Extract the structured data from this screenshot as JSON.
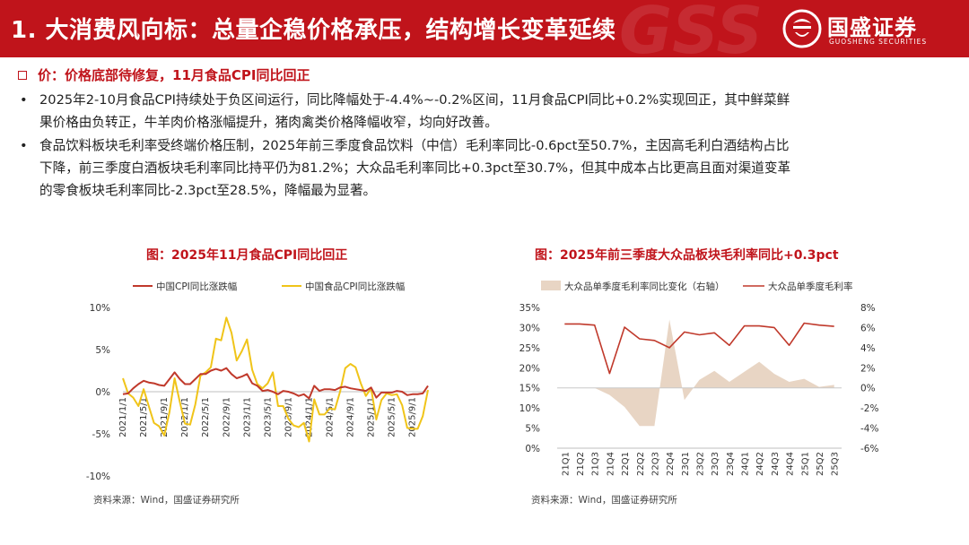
{
  "header": {
    "title": "1. 大消费风向标：总量企稳价格承压，结构增长变革延续",
    "deco_text": "GSS",
    "logo_cn": "国盛证券",
    "logo_en": "GUOSHENG SECURITIES",
    "color": "#c0141b"
  },
  "bullet_head": "价：价格底部待修复，11月食品CPI同比回正",
  "paragraphs": [
    {
      "lines": [
        "2025年2-10月食品CPI持续处于负区间运行，同比降幅处于-4.4%~-0.2%区间，11月食品CPI同比+0.2%实现回正，其中鲜菜鲜",
        "果价格由负转正，牛羊肉价格涨幅提升，猪肉禽类价格降幅收窄，均向好改善。"
      ]
    },
    {
      "lines": [
        "食品饮料板块毛利率受终端价格压制，2025年前三季度食品饮料（中信）毛利率同比-0.6pct至50.7%，主因高毛利白酒结构占比",
        "下降，前三季度白酒板块毛利率同比持平仍为81.2%；大众品毛利率同比+0.3pct至30.7%，但其中成本占比更高且面对渠道变革",
        "的零食板块毛利率同比-2.3pct至28.5%，降幅最为显著。"
      ]
    }
  ],
  "chart_data": [
    {
      "type": "line",
      "title": "图：2025年11月食品CPI同比回正",
      "source": "资料来源：Wind，国盛证券研究所",
      "ylim": [
        -10,
        10
      ],
      "y_ticks": [
        10,
        5,
        0,
        -5,
        -10
      ],
      "y_tick_labels": [
        "10%",
        "5%",
        "0%",
        "-5%",
        "-10%"
      ],
      "x_tick_labels": [
        "2021/1/1",
        "2021/5/1",
        "2021/9/1",
        "2022/1/1",
        "2022/5/1",
        "2022/9/1",
        "2023/1/1",
        "2023/5/1",
        "2023/9/1",
        "2024/1/1",
        "2024/5/1",
        "2024/9/1",
        "2025/1/1",
        "2025/5/1",
        "2025/9/1"
      ],
      "series": [
        {
          "name": "中国CPI同比涨跌幅",
          "color": "#c0392b",
          "values": [
            -0.3,
            -0.2,
            0.4,
            0.9,
            1.3,
            1.1,
            1.0,
            0.8,
            0.7,
            1.5,
            2.3,
            1.5,
            0.9,
            0.9,
            1.5,
            2.1,
            2.1,
            2.5,
            2.7,
            2.5,
            2.8,
            2.1,
            1.6,
            1.8,
            2.1,
            1.0,
            0.7,
            0.1,
            0.2,
            0.0,
            -0.3,
            0.1,
            0.0,
            -0.2,
            -0.5,
            -0.3,
            -0.8,
            0.7,
            0.1,
            0.3,
            0.3,
            0.2,
            0.5,
            0.6,
            0.4,
            0.3,
            0.2,
            0.1,
            0.5,
            -0.7,
            -0.1,
            -0.1,
            -0.1,
            0.1,
            0.0,
            -0.4,
            -0.3,
            -0.3,
            -0.2,
            0.7
          ]
        },
        {
          "name": "中国食品CPI同比涨跌幅",
          "color": "#f0c419",
          "values": [
            1.6,
            -0.2,
            -0.7,
            -1.7,
            0.3,
            -1.7,
            -3.7,
            -4.1,
            -5.2,
            -2.4,
            1.6,
            -1.2,
            -3.8,
            -3.9,
            -1.5,
            1.9,
            2.3,
            2.9,
            6.3,
            6.1,
            8.8,
            7.0,
            3.7,
            4.8,
            6.2,
            2.6,
            0.9,
            0.4,
            1.0,
            2.3,
            -1.7,
            -1.7,
            -3.2,
            -4.0,
            -4.2,
            -3.7,
            -5.9,
            -0.9,
            -2.7,
            -2.7,
            -2.0,
            -2.1,
            0.0,
            2.8,
            3.3,
            2.9,
            1.0,
            -0.5,
            0.4,
            -3.3,
            -1.0,
            -0.2,
            -0.4,
            -0.3,
            -1.6,
            -4.3,
            -4.4,
            -4.4,
            -2.9,
            0.2
          ]
        }
      ]
    },
    {
      "type": "bar+line",
      "title": "图：2025年前三季度大众品板块毛利率同比+0.3pct",
      "source": "资料来源：Wind，国盛证券研究所",
      "categories": [
        "21Q1",
        "21Q2",
        "21Q3",
        "21Q4",
        "22Q1",
        "22Q2",
        "22Q3",
        "22Q4",
        "23Q1",
        "23Q2",
        "23Q3",
        "23Q4",
        "24Q1",
        "24Q2",
        "24Q3",
        "24Q4",
        "25Q1",
        "25Q2",
        "25Q3"
      ],
      "left_axis": {
        "ylim": [
          0,
          35
        ],
        "ticks": [
          0,
          5,
          10,
          15,
          20,
          25,
          30,
          35
        ],
        "tick_labels": [
          "0%",
          "5%",
          "10%",
          "15%",
          "20%",
          "25%",
          "30%",
          "35%"
        ]
      },
      "right_axis": {
        "ylim": [
          -6,
          8
        ],
        "ticks": [
          -6,
          -4,
          -2,
          0,
          2,
          4,
          6,
          8
        ],
        "tick_labels": [
          "-6%",
          "-4%",
          "-2%",
          "0%",
          "2%",
          "4%",
          "6%",
          "8%"
        ]
      },
      "series": [
        {
          "name": "大众品单季度毛利率同比变化（右轴）",
          "kind": "area",
          "axis": "right",
          "color": "#e8d5c4",
          "values": [
            0.0,
            0.0,
            0.0,
            -0.7,
            -1.9,
            -3.8,
            -3.8,
            6.8,
            -1.2,
            0.8,
            1.7,
            0.6,
            1.6,
            2.6,
            1.4,
            0.6,
            0.9,
            0.1,
            0.3
          ]
        },
        {
          "name": "大众品单季度毛利率",
          "kind": "line",
          "axis": "left",
          "color": "#c0392b",
          "values": [
            30.9,
            30.9,
            30.6,
            18.6,
            30.1,
            27.2,
            26.8,
            25.0,
            28.9,
            28.2,
            28.7,
            25.6,
            30.4,
            30.4,
            30.0,
            25.6,
            31.1,
            30.6,
            30.3
          ]
        }
      ]
    }
  ]
}
